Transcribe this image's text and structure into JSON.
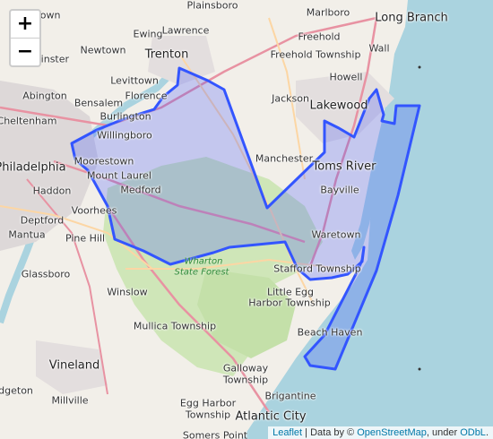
{
  "zoom": {
    "in_label": "+",
    "out_label": "−"
  },
  "attribution": {
    "leaflet": "Leaflet",
    "sep": " | Data by © ",
    "osm": "OpenStreetMap",
    "under": ", under ",
    "odbl": "ODbL",
    "end": "."
  },
  "places": {
    "plainsboro": "Plainsboro",
    "marlboro": "Marlboro",
    "long_branch": "Long Branch",
    "ewing": "Ewing",
    "lawrence": "Lawrence",
    "freehold": "Freehold",
    "newtown": "Newtown",
    "trenton": "Trenton",
    "freehold_twp": "Freehold Township",
    "wall": "Wall",
    "levittown": "Levittown",
    "howell": "Howell",
    "abington": "Abington",
    "bensalem": "Bensalem",
    "florence": "Florence",
    "cheltenham": "Cheltenham",
    "burlington": "Burlington",
    "jackson": "Jackson",
    "lakewood": "Lakewood",
    "willingboro": "Willingboro",
    "philadelphia": "Philadelphia",
    "moorestown": "Moorestown",
    "manchester": "Manchester",
    "toms_river": "Toms River",
    "mount_laurel": "Mount Laurel",
    "haddon": "Haddon",
    "medford": "Medford",
    "bayville": "Bayville",
    "voorhees": "Voorhees",
    "deptford": "Deptford",
    "mantua": "Mantua",
    "pine_hill": "Pine Hill",
    "waretown": "Waretown",
    "wharton": "Wharton",
    "state_forest": "State Forest",
    "glassboro": "Glassboro",
    "stafford_twp": "Stafford Township",
    "winslow": "Winslow",
    "little_egg": "Little Egg",
    "harbor_twp": "Harbor Township",
    "mullica_twp": "Mullica Township",
    "beach_haven": "Beach Haven",
    "vineland": "Vineland",
    "galloway": "Galloway",
    "township": "Township",
    "brigantine": "Brigantine",
    "millville": "Millville",
    "egg_harbor": "Egg Harbor",
    "township2": "Township",
    "atlantic_city": "Atlantic City",
    "somers_point": "Somers Point",
    "bridgeton": "idgeton",
    "minster": "minster",
    "town": "town"
  },
  "colors": {
    "land": "#f2efe9",
    "water": "#aad3df",
    "forest": "#cfe6b8",
    "urban": "#ddd8d8",
    "highway": "#e892a2",
    "primary": "#fcd6a4",
    "boundary": "#3355ff",
    "boundary_fill": "rgba(60,80,255,0.25)"
  },
  "icons": {
    "zoom_in": "plus-icon",
    "zoom_out": "minus-icon"
  }
}
